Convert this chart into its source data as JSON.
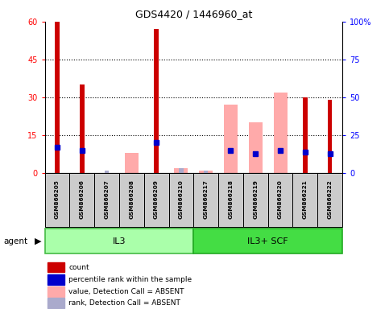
{
  "title": "GDS4420 / 1446960_at",
  "samples": [
    "GSM866205",
    "GSM866206",
    "GSM866207",
    "GSM866208",
    "GSM866209",
    "GSM866210",
    "GSM866217",
    "GSM866218",
    "GSM866219",
    "GSM866220",
    "GSM866221",
    "GSM866222"
  ],
  "groups": [
    {
      "label": "IL3",
      "indices": [
        0,
        1,
        2,
        3,
        4,
        5
      ],
      "color": "#aaffaa",
      "border": "#44bb44"
    },
    {
      "label": "IL3+ SCF",
      "indices": [
        6,
        7,
        8,
        9,
        10,
        11
      ],
      "color": "#44dd44",
      "border": "#22aa22"
    }
  ],
  "count_values": [
    60,
    35,
    0,
    0,
    57,
    0,
    0,
    0,
    0,
    0,
    30,
    29
  ],
  "rank_values": [
    17,
    15,
    0,
    0,
    20,
    0,
    0,
    15,
    13,
    15,
    14,
    13
  ],
  "absent_value": [
    0,
    0,
    0,
    8,
    0,
    2,
    1,
    27,
    20,
    32,
    0,
    0
  ],
  "absent_rank": [
    0,
    0,
    1,
    0,
    0,
    2,
    1,
    0,
    0,
    0,
    0,
    0
  ],
  "ylim_left": [
    0,
    60
  ],
  "ylim_right": [
    0,
    100
  ],
  "yticks_left": [
    0,
    15,
    30,
    45,
    60
  ],
  "ytick_labels_left": [
    "0",
    "15",
    "30",
    "45",
    "60"
  ],
  "yticks_right": [
    0,
    25,
    50,
    75,
    100
  ],
  "ytick_labels_right": [
    "0",
    "25",
    "50",
    "75",
    "100%"
  ],
  "count_color": "#cc0000",
  "rank_color": "#0000cc",
  "absent_val_color": "#ffaaaa",
  "absent_rank_color": "#aaaacc",
  "bg_color": "#ffffff",
  "plot_bg": "#ffffff",
  "agent_label": "agent",
  "sample_box_color": "#cccccc",
  "legend": [
    {
      "label": "count",
      "color": "#cc0000"
    },
    {
      "label": "percentile rank within the sample",
      "color": "#0000cc"
    },
    {
      "label": "value, Detection Call = ABSENT",
      "color": "#ffaaaa"
    },
    {
      "label": "rank, Detection Call = ABSENT",
      "color": "#aaaacc"
    }
  ]
}
